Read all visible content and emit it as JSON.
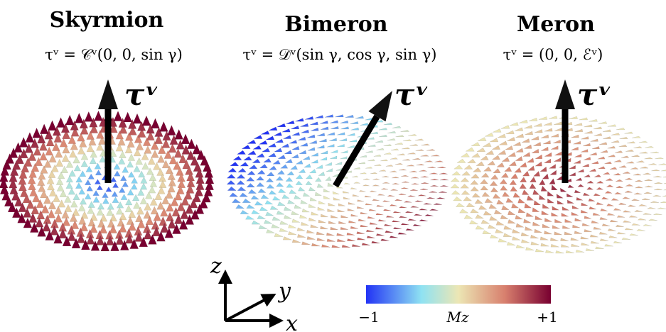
{
  "panels": [
    {
      "title": "Skyrmion",
      "formula": "τᵛ = 𝒞ᵛ(0, 0, sin γ)",
      "vector_label": "τᵛ"
    },
    {
      "title": "Bimeron",
      "formula": "τᵛ = 𝒟ᵛ(sin γ, cos γ, sin γ)",
      "vector_label": "τᵛ"
    },
    {
      "title": "Meron",
      "formula": "τᵛ = (0, 0, ℰᵛ)",
      "vector_label": "τᵛ"
    }
  ],
  "axes": {
    "z": "z",
    "y": "y",
    "x": "x"
  },
  "colorbar": {
    "min_label": "−1",
    "label": "Mz",
    "max_label": "+1"
  }
}
